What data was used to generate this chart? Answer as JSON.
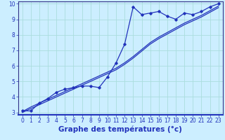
{
  "xlabel": "Graphe des températures (°c)",
  "background_color": "#cceeff",
  "grid_color": "#aadddd",
  "line_color": "#2233bb",
  "x_hours": [
    0,
    1,
    2,
    3,
    4,
    5,
    6,
    7,
    8,
    9,
    10,
    11,
    12,
    13,
    14,
    15,
    16,
    17,
    18,
    19,
    20,
    21,
    22,
    23
  ],
  "y_measured": [
    3.1,
    3.1,
    3.6,
    3.9,
    4.3,
    4.5,
    4.6,
    4.7,
    4.7,
    4.6,
    5.3,
    6.2,
    7.4,
    9.8,
    9.3,
    9.4,
    9.5,
    9.2,
    9.0,
    9.4,
    9.3,
    9.5,
    9.8,
    10.0
  ],
  "y_trend1": [
    3.05,
    3.35,
    3.6,
    3.85,
    4.1,
    4.35,
    4.6,
    4.85,
    5.1,
    5.35,
    5.6,
    5.85,
    6.2,
    6.6,
    7.05,
    7.5,
    7.85,
    8.15,
    8.45,
    8.75,
    9.0,
    9.25,
    9.55,
    9.85
  ],
  "y_trend2": [
    3.0,
    3.25,
    3.5,
    3.75,
    4.0,
    4.25,
    4.5,
    4.75,
    5.0,
    5.25,
    5.5,
    5.75,
    6.1,
    6.5,
    6.95,
    7.4,
    7.75,
    8.05,
    8.35,
    8.65,
    8.9,
    9.15,
    9.45,
    9.75
  ],
  "ylim": [
    3,
    10
  ],
  "yticks": [
    3,
    4,
    5,
    6,
    7,
    8,
    9,
    10
  ],
  "xlim": [
    0,
    23
  ],
  "xticks": [
    0,
    1,
    2,
    3,
    4,
    5,
    6,
    7,
    8,
    9,
    10,
    11,
    12,
    13,
    14,
    15,
    16,
    17,
    18,
    19,
    20,
    21,
    22,
    23
  ],
  "tick_fontsize": 5.5,
  "xlabel_fontsize": 7.5
}
